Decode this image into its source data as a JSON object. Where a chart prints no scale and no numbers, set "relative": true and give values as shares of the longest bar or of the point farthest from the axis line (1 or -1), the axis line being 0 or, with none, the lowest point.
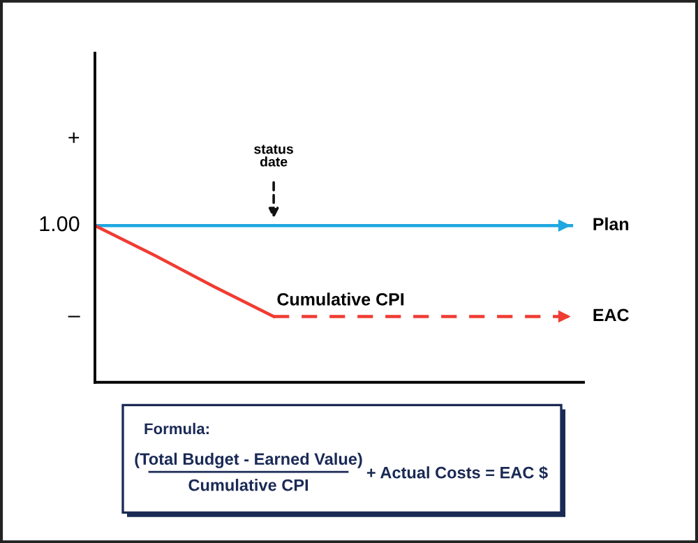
{
  "chart_data": {
    "type": "line",
    "relative": true,
    "categories": [
      null,
      null,
      null,
      null,
      null,
      null,
      null,
      null,
      null
    ],
    "series": [
      {
        "name": "Plan",
        "color": "#1ea7e1",
        "values": [
          1,
          1,
          1,
          1,
          1,
          1,
          1,
          1,
          1
        ],
        "line_style": "solid"
      },
      {
        "name": "Cumulative CPI",
        "color": "#f03c32",
        "values": [
          1,
          0.81,
          0.61,
          0.42,
          null,
          null,
          null,
          null,
          null
        ],
        "line_style": "solid"
      },
      {
        "name": "EAC",
        "color": "#f03c32",
        "values": [
          null,
          null,
          null,
          0.42,
          0.42,
          0.42,
          0.42,
          0.42,
          0.42
        ],
        "line_style": "dashed"
      }
    ],
    "annotations": [
      "+",
      "1.00",
      "–",
      "status date",
      "Formula:",
      "(Total Budget - Earned Value)",
      "Cumulative CPI",
      "+ Actual Costs = EAC $"
    ],
    "legend": false,
    "marker": "none"
  }
}
